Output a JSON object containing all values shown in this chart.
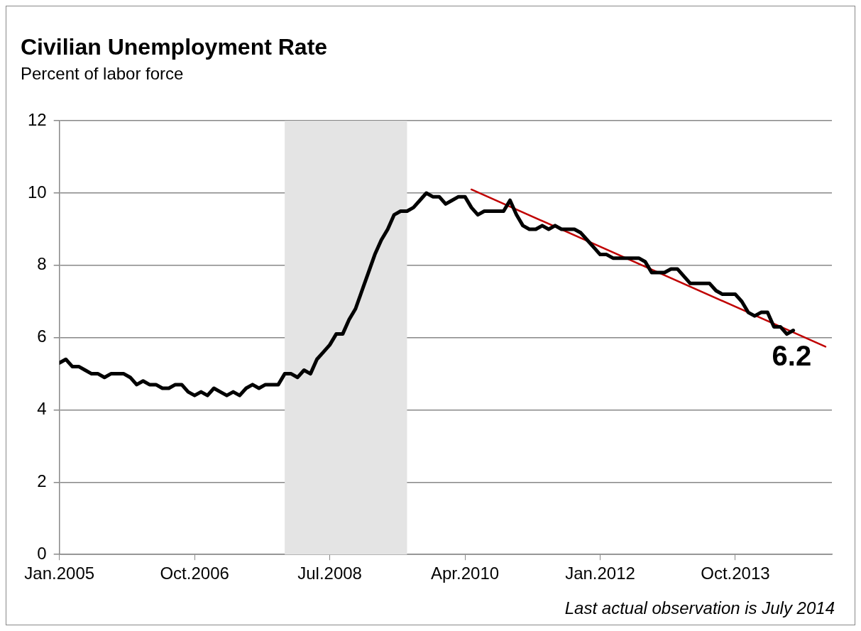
{
  "chart_data": {
    "type": "line",
    "title": "Civilian Unemployment Rate",
    "subtitle": "Percent of labor force",
    "x": [
      "2005-01",
      "2005-02",
      "2005-03",
      "2005-04",
      "2005-05",
      "2005-06",
      "2005-07",
      "2005-08",
      "2005-09",
      "2005-10",
      "2005-11",
      "2005-12",
      "2006-01",
      "2006-02",
      "2006-03",
      "2006-04",
      "2006-05",
      "2006-06",
      "2006-07",
      "2006-08",
      "2006-09",
      "2006-10",
      "2006-11",
      "2006-12",
      "2007-01",
      "2007-02",
      "2007-03",
      "2007-04",
      "2007-05",
      "2007-06",
      "2007-07",
      "2007-08",
      "2007-09",
      "2007-10",
      "2007-11",
      "2007-12",
      "2008-01",
      "2008-02",
      "2008-03",
      "2008-04",
      "2008-05",
      "2008-06",
      "2008-07",
      "2008-08",
      "2008-09",
      "2008-10",
      "2008-11",
      "2008-12",
      "2009-01",
      "2009-02",
      "2009-03",
      "2009-04",
      "2009-05",
      "2009-06",
      "2009-07",
      "2009-08",
      "2009-09",
      "2009-10",
      "2009-11",
      "2009-12",
      "2010-01",
      "2010-02",
      "2010-03",
      "2010-04",
      "2010-05",
      "2010-06",
      "2010-07",
      "2010-08",
      "2010-09",
      "2010-10",
      "2010-11",
      "2010-12",
      "2011-01",
      "2011-02",
      "2011-03",
      "2011-04",
      "2011-05",
      "2011-06",
      "2011-07",
      "2011-08",
      "2011-09",
      "2011-10",
      "2011-11",
      "2011-12",
      "2012-01",
      "2012-02",
      "2012-03",
      "2012-04",
      "2012-05",
      "2012-06",
      "2012-07",
      "2012-08",
      "2012-09",
      "2012-10",
      "2012-11",
      "2012-12",
      "2013-01",
      "2013-02",
      "2013-03",
      "2013-04",
      "2013-05",
      "2013-06",
      "2013-07",
      "2013-08",
      "2013-09",
      "2013-10",
      "2013-11",
      "2013-12",
      "2014-01",
      "2014-02",
      "2014-03",
      "2014-04",
      "2014-05",
      "2014-06",
      "2014-07"
    ],
    "series": [
      {
        "color": "#000000",
        "values": [
          5.3,
          5.4,
          5.2,
          5.2,
          5.1,
          5.0,
          5.0,
          4.9,
          5.0,
          5.0,
          5.0,
          4.9,
          4.7,
          4.8,
          4.7,
          4.7,
          4.6,
          4.6,
          4.7,
          4.7,
          4.5,
          4.4,
          4.5,
          4.4,
          4.6,
          4.5,
          4.4,
          4.5,
          4.4,
          4.6,
          4.7,
          4.6,
          4.7,
          4.7,
          4.7,
          5.0,
          5.0,
          4.9,
          5.1,
          5.0,
          5.4,
          5.6,
          5.8,
          6.1,
          6.1,
          6.5,
          6.8,
          7.3,
          7.8,
          8.3,
          8.7,
          9.0,
          9.4,
          9.5,
          9.5,
          9.6,
          9.8,
          10.0,
          9.9,
          9.9,
          9.7,
          9.8,
          9.9,
          9.9,
          9.6,
          9.4,
          9.5,
          9.5,
          9.5,
          9.5,
          9.8,
          9.4,
          9.1,
          9.0,
          9.0,
          9.1,
          9.0,
          9.1,
          9.0,
          9.0,
          9.0,
          8.9,
          8.7,
          8.5,
          8.3,
          8.3,
          8.2,
          8.2,
          8.2,
          8.2,
          8.2,
          8.1,
          7.8,
          7.8,
          7.8,
          7.9,
          7.9,
          7.7,
          7.5,
          7.5,
          7.5,
          7.5,
          7.3,
          7.2,
          7.2,
          7.2,
          7.0,
          6.7,
          6.6,
          6.7,
          6.7,
          6.3,
          6.3,
          6.1,
          6.2
        ]
      },
      {
        "type": "line",
        "color": "#c00000",
        "x": [
          "2010-05",
          "2014-12"
        ],
        "values": [
          10.1,
          5.75
        ]
      }
    ],
    "xlim": [
      "2005-01",
      "2015-01"
    ],
    "xticks": [
      {
        "value": "2005-01",
        "label": "Jan.2005"
      },
      {
        "value": "2006-10",
        "label": "Oct.2006"
      },
      {
        "value": "2008-07",
        "label": "Jul.2008"
      },
      {
        "value": "2010-04",
        "label": "Apr.2010"
      },
      {
        "value": "2012-01",
        "label": "Jan.2012"
      },
      {
        "value": "2013-10",
        "label": "Oct.2013"
      }
    ],
    "ylim": [
      0,
      12
    ],
    "yticks": [
      0,
      2,
      4,
      6,
      8,
      10,
      12
    ],
    "grid": "y",
    "legend": false,
    "bands": [
      {
        "axis": "x",
        "from": "2007-12",
        "to": "2009-07",
        "color": "#e4e4e4"
      }
    ],
    "annotations": [
      {
        "text": "6.2",
        "x": "2014-07",
        "y": 6.2
      },
      "Last actual observation is July 2014"
    ]
  }
}
